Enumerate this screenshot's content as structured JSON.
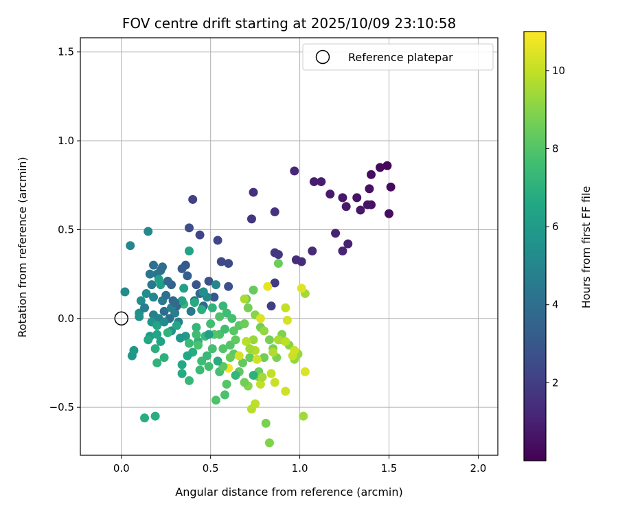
{
  "chart_data": {
    "type": "scatter",
    "title": "FOV centre drift starting at 2025/10/09 23:10:58",
    "xlabel": "Angular distance from reference (arcmin)",
    "ylabel": "Rotation from reference (arcmin)",
    "xlim": [
      -0.23,
      2.11
    ],
    "ylim": [
      -0.77,
      1.58
    ],
    "xticks": [
      0.0,
      0.5,
      1.0,
      1.5,
      2.0
    ],
    "xtick_labels": [
      "0.0",
      "0.5",
      "1.0",
      "1.5",
      "2.0"
    ],
    "yticks": [
      -0.5,
      0.0,
      0.5,
      1.0,
      1.5
    ],
    "ytick_labels": [
      "−0.5",
      "0.0",
      "0.5",
      "1.0",
      "1.5"
    ],
    "grid": true,
    "legend": {
      "position": "top-right",
      "entries": [
        "Reference platepar"
      ]
    },
    "reference_point": {
      "x": 0.0,
      "y": 0.0,
      "label": "Reference platepar"
    },
    "colorbar": {
      "label": "Hours from first FF file",
      "min": 0.0,
      "max": 11.0,
      "ticks": [
        2,
        4,
        6,
        8,
        10
      ],
      "tick_labels": [
        "2",
        "4",
        "6",
        "8",
        "10"
      ],
      "colormap": "viridis"
    },
    "points": [
      {
        "x": 1.49,
        "y": 0.86,
        "h": 0.2
      },
      {
        "x": 1.45,
        "y": 0.85,
        "h": 0.3
      },
      {
        "x": 1.51,
        "y": 0.74,
        "h": 0.3
      },
      {
        "x": 1.4,
        "y": 0.81,
        "h": 0.4
      },
      {
        "x": 1.5,
        "y": 0.59,
        "h": 0.4
      },
      {
        "x": 1.39,
        "y": 0.73,
        "h": 0.5
      },
      {
        "x": 1.4,
        "y": 0.64,
        "h": 0.5
      },
      {
        "x": 1.38,
        "y": 0.64,
        "h": 0.6
      },
      {
        "x": 1.32,
        "y": 0.68,
        "h": 0.6
      },
      {
        "x": 1.34,
        "y": 0.61,
        "h": 0.7
      },
      {
        "x": 1.24,
        "y": 0.68,
        "h": 0.7
      },
      {
        "x": 1.26,
        "y": 0.63,
        "h": 0.8
      },
      {
        "x": 1.17,
        "y": 0.7,
        "h": 0.8
      },
      {
        "x": 1.12,
        "y": 0.77,
        "h": 0.9
      },
      {
        "x": 1.08,
        "y": 0.77,
        "h": 0.9
      },
      {
        "x": 1.2,
        "y": 0.48,
        "h": 1.0
      },
      {
        "x": 1.27,
        "y": 0.42,
        "h": 1.0
      },
      {
        "x": 1.24,
        "y": 0.38,
        "h": 1.1
      },
      {
        "x": 0.97,
        "y": 0.83,
        "h": 1.2
      },
      {
        "x": 1.07,
        "y": 0.38,
        "h": 1.3
      },
      {
        "x": 0.98,
        "y": 0.33,
        "h": 1.4
      },
      {
        "x": 1.01,
        "y": 0.32,
        "h": 1.4
      },
      {
        "x": 0.74,
        "y": 0.71,
        "h": 1.5
      },
      {
        "x": 0.86,
        "y": 0.6,
        "h": 1.6
      },
      {
        "x": 0.73,
        "y": 0.56,
        "h": 1.7
      },
      {
        "x": 0.86,
        "y": 0.37,
        "h": 1.8
      },
      {
        "x": 0.88,
        "y": 0.36,
        "h": 1.8
      },
      {
        "x": 0.86,
        "y": 0.2,
        "h": 1.9
      },
      {
        "x": 0.84,
        "y": 0.07,
        "h": 2.0
      },
      {
        "x": 0.4,
        "y": 0.67,
        "h": 2.1
      },
      {
        "x": 0.44,
        "y": 0.47,
        "h": 2.2
      },
      {
        "x": 0.54,
        "y": 0.44,
        "h": 2.3
      },
      {
        "x": 0.56,
        "y": 0.32,
        "h": 2.4
      },
      {
        "x": 0.6,
        "y": 0.31,
        "h": 2.5
      },
      {
        "x": 0.38,
        "y": 0.51,
        "h": 2.6
      },
      {
        "x": 0.6,
        "y": 0.18,
        "h": 2.7
      },
      {
        "x": 0.49,
        "y": 0.21,
        "h": 2.8
      },
      {
        "x": 0.42,
        "y": 0.19,
        "h": 2.9
      },
      {
        "x": 0.52,
        "y": 0.12,
        "h": 3.0
      },
      {
        "x": 0.36,
        "y": 0.3,
        "h": 3.1
      },
      {
        "x": 0.34,
        "y": 0.28,
        "h": 3.2
      },
      {
        "x": 0.37,
        "y": 0.24,
        "h": 3.3
      },
      {
        "x": 0.28,
        "y": 0.19,
        "h": 3.4
      },
      {
        "x": 0.29,
        "y": 0.1,
        "h": 3.5
      },
      {
        "x": 0.44,
        "y": 0.14,
        "h": 3.6
      },
      {
        "x": 0.41,
        "y": 0.1,
        "h": 3.7
      },
      {
        "x": 0.46,
        "y": 0.07,
        "h": 3.8
      },
      {
        "x": 0.24,
        "y": 0.04,
        "h": 3.9
      },
      {
        "x": 0.22,
        "y": 0.27,
        "h": 4.0
      },
      {
        "x": 0.18,
        "y": 0.3,
        "h": 4.1
      },
      {
        "x": 0.2,
        "y": 0.25,
        "h": 4.2
      },
      {
        "x": 0.16,
        "y": 0.25,
        "h": 4.3
      },
      {
        "x": 0.17,
        "y": 0.19,
        "h": 4.4
      },
      {
        "x": 0.23,
        "y": 0.1,
        "h": 4.5
      },
      {
        "x": 0.3,
        "y": 0.03,
        "h": 4.6
      },
      {
        "x": 0.32,
        "y": -0.02,
        "h": 4.7
      },
      {
        "x": 0.18,
        "y": 0.02,
        "h": 4.8
      },
      {
        "x": 0.21,
        "y": 0.0,
        "h": 4.9
      },
      {
        "x": 0.05,
        "y": 0.41,
        "h": 5.0
      },
      {
        "x": 0.15,
        "y": 0.49,
        "h": 5.1
      },
      {
        "x": 0.02,
        "y": 0.15,
        "h": 5.2
      },
      {
        "x": 0.14,
        "y": 0.14,
        "h": 5.3
      },
      {
        "x": 0.11,
        "y": 0.1,
        "h": 5.4
      },
      {
        "x": 0.1,
        "y": 0.03,
        "h": 5.5
      },
      {
        "x": 0.1,
        "y": 0.01,
        "h": 5.6
      },
      {
        "x": 0.17,
        "y": -0.02,
        "h": 5.7
      },
      {
        "x": 0.06,
        "y": -0.21,
        "h": 5.8
      },
      {
        "x": 0.07,
        "y": -0.18,
        "h": 5.9
      },
      {
        "x": 0.16,
        "y": -0.1,
        "h": 6.0
      },
      {
        "x": 0.22,
        "y": 0.19,
        "h": 6.1
      },
      {
        "x": 0.35,
        "y": 0.17,
        "h": 6.2
      },
      {
        "x": 0.38,
        "y": 0.38,
        "h": 6.3
      },
      {
        "x": 0.2,
        "y": -0.04,
        "h": 6.4
      },
      {
        "x": 0.2,
        "y": -0.09,
        "h": 6.5
      },
      {
        "x": 0.34,
        "y": -0.26,
        "h": 6.6
      },
      {
        "x": 0.34,
        "y": -0.31,
        "h": 6.7
      },
      {
        "x": 0.13,
        "y": -0.56,
        "h": 6.8
      },
      {
        "x": 0.19,
        "y": -0.55,
        "h": 6.9
      },
      {
        "x": 0.24,
        "y": -0.22,
        "h": 7.0
      },
      {
        "x": 0.2,
        "y": -0.25,
        "h": 7.1
      },
      {
        "x": 0.35,
        "y": 0.08,
        "h": 7.2
      },
      {
        "x": 0.38,
        "y": -0.35,
        "h": 7.3
      },
      {
        "x": 0.44,
        "y": -0.29,
        "h": 7.4
      },
      {
        "x": 0.45,
        "y": -0.24,
        "h": 7.5
      },
      {
        "x": 0.49,
        "y": -0.27,
        "h": 7.6
      },
      {
        "x": 0.55,
        "y": -0.3,
        "h": 7.7
      },
      {
        "x": 0.58,
        "y": -0.43,
        "h": 7.8
      },
      {
        "x": 0.53,
        "y": -0.46,
        "h": 7.9
      },
      {
        "x": 0.61,
        "y": -0.15,
        "h": 8.0
      },
      {
        "x": 0.66,
        "y": -0.04,
        "h": 8.1
      },
      {
        "x": 0.63,
        "y": -0.2,
        "h": 8.2
      },
      {
        "x": 0.7,
        "y": 0.11,
        "h": 8.3
      },
      {
        "x": 0.74,
        "y": 0.16,
        "h": 8.4
      },
      {
        "x": 0.88,
        "y": 0.31,
        "h": 8.5
      },
      {
        "x": 0.78,
        "y": -0.05,
        "h": 8.6
      },
      {
        "x": 0.85,
        "y": -0.17,
        "h": 8.7
      },
      {
        "x": 0.81,
        "y": -0.59,
        "h": 8.8
      },
      {
        "x": 0.83,
        "y": -0.7,
        "h": 8.9
      },
      {
        "x": 0.71,
        "y": -0.38,
        "h": 9.0
      },
      {
        "x": 0.77,
        "y": -0.33,
        "h": 9.1
      },
      {
        "x": 0.9,
        "y": -0.12,
        "h": 9.2
      },
      {
        "x": 0.99,
        "y": -0.2,
        "h": 9.3
      },
      {
        "x": 1.02,
        "y": -0.55,
        "h": 9.4
      },
      {
        "x": 1.03,
        "y": 0.14,
        "h": 9.5
      },
      {
        "x": 0.69,
        "y": 0.11,
        "h": 9.6
      },
      {
        "x": 0.75,
        "y": -0.18,
        "h": 9.7
      },
      {
        "x": 0.73,
        "y": -0.51,
        "h": 9.8
      },
      {
        "x": 0.75,
        "y": -0.48,
        "h": 9.9
      },
      {
        "x": 0.78,
        "y": -0.37,
        "h": 10.0
      },
      {
        "x": 0.86,
        "y": -0.36,
        "h": 10.1
      },
      {
        "x": 0.92,
        "y": -0.41,
        "h": 10.2
      },
      {
        "x": 0.93,
        "y": -0.01,
        "h": 10.3
      },
      {
        "x": 1.03,
        "y": -0.3,
        "h": 10.4
      },
      {
        "x": 1.01,
        "y": 0.17,
        "h": 10.5
      },
      {
        "x": 0.82,
        "y": 0.18,
        "h": 10.6
      },
      {
        "x": 0.6,
        "y": -0.28,
        "h": 10.8
      },
      {
        "x": 0.31,
        "y": 0.07,
        "h": 3.6
      },
      {
        "x": 0.27,
        "y": 0.0,
        "h": 4.0
      },
      {
        "x": 0.25,
        "y": 0.13,
        "h": 4.1
      },
      {
        "x": 0.39,
        "y": 0.04,
        "h": 4.4
      },
      {
        "x": 0.36,
        "y": -0.1,
        "h": 6.0
      },
      {
        "x": 0.42,
        "y": -0.05,
        "h": 7.2
      },
      {
        "x": 0.47,
        "y": -0.1,
        "h": 7.4
      },
      {
        "x": 0.5,
        "y": -0.03,
        "h": 7.6
      },
      {
        "x": 0.55,
        "y": -0.09,
        "h": 7.8
      },
      {
        "x": 0.57,
        "y": -0.17,
        "h": 8.0
      },
      {
        "x": 0.63,
        "y": -0.07,
        "h": 8.1
      },
      {
        "x": 0.66,
        "y": -0.3,
        "h": 8.2
      },
      {
        "x": 0.68,
        "y": -0.25,
        "h": 8.3
      },
      {
        "x": 0.72,
        "y": -0.22,
        "h": 8.4
      },
      {
        "x": 0.77,
        "y": -0.3,
        "h": 8.5
      },
      {
        "x": 0.8,
        "y": -0.22,
        "h": 8.6
      },
      {
        "x": 0.83,
        "y": -0.12,
        "h": 8.7
      },
      {
        "x": 0.87,
        "y": -0.22,
        "h": 8.8
      },
      {
        "x": 0.9,
        "y": -0.09,
        "h": 8.9
      },
      {
        "x": 0.94,
        "y": -0.15,
        "h": 9.0
      },
      {
        "x": 0.97,
        "y": -0.23,
        "h": 9.2
      },
      {
        "x": 0.74,
        "y": -0.12,
        "h": 9.3
      },
      {
        "x": 0.79,
        "y": -0.33,
        "h": 9.5
      },
      {
        "x": 0.84,
        "y": -0.31,
        "h": 10.0
      },
      {
        "x": 0.92,
        "y": 0.06,
        "h": 10.0
      },
      {
        "x": 0.96,
        "y": -0.21,
        "h": 10.1
      },
      {
        "x": 0.76,
        "y": -0.23,
        "h": 10.2
      },
      {
        "x": 0.66,
        "y": -0.21,
        "h": 10.3
      },
      {
        "x": 0.7,
        "y": -0.13,
        "h": 9.8
      },
      {
        "x": 0.72,
        "y": -0.17,
        "h": 9.4
      },
      {
        "x": 0.61,
        "y": -0.22,
        "h": 8.4
      },
      {
        "x": 0.57,
        "y": -0.27,
        "h": 8.2
      },
      {
        "x": 0.59,
        "y": -0.37,
        "h": 8.0
      },
      {
        "x": 0.51,
        "y": -0.17,
        "h": 7.7
      },
      {
        "x": 0.48,
        "y": -0.21,
        "h": 7.3
      },
      {
        "x": 0.43,
        "y": -0.13,
        "h": 7.0
      },
      {
        "x": 0.4,
        "y": -0.19,
        "h": 6.8
      },
      {
        "x": 0.37,
        "y": -0.21,
        "h": 6.6
      },
      {
        "x": 0.33,
        "y": -0.11,
        "h": 5.8
      },
      {
        "x": 0.28,
        "y": -0.07,
        "h": 5.6
      },
      {
        "x": 0.24,
        "y": -0.02,
        "h": 5.2
      },
      {
        "x": 0.28,
        "y": 0.06,
        "h": 4.8
      },
      {
        "x": 0.34,
        "y": 0.1,
        "h": 6.4
      },
      {
        "x": 0.31,
        "y": -0.04,
        "h": 6.5
      },
      {
        "x": 0.41,
        "y": 0.09,
        "h": 6.7
      },
      {
        "x": 0.45,
        "y": 0.05,
        "h": 6.9
      },
      {
        "x": 0.48,
        "y": 0.12,
        "h": 5.0
      },
      {
        "x": 0.51,
        "y": 0.06,
        "h": 7.1
      },
      {
        "x": 0.57,
        "y": 0.07,
        "h": 7.3
      },
      {
        "x": 0.59,
        "y": 0.03,
        "h": 7.5
      },
      {
        "x": 0.62,
        "y": 0.0,
        "h": 7.7
      },
      {
        "x": 0.55,
        "y": 0.01,
        "h": 7.9
      },
      {
        "x": 0.52,
        "y": -0.09,
        "h": 8.0
      },
      {
        "x": 0.58,
        "y": -0.06,
        "h": 7.6
      },
      {
        "x": 0.64,
        "y": -0.12,
        "h": 8.3
      },
      {
        "x": 0.69,
        "y": -0.03,
        "h": 8.5
      },
      {
        "x": 0.71,
        "y": 0.06,
        "h": 8.7
      },
      {
        "x": 0.75,
        "y": 0.02,
        "h": 9.0
      },
      {
        "x": 0.8,
        "y": -0.07,
        "h": 9.2
      },
      {
        "x": 0.88,
        "y": -0.12,
        "h": 9.6
      },
      {
        "x": 0.85,
        "y": -0.19,
        "h": 9.7
      },
      {
        "x": 0.92,
        "y": -0.13,
        "h": 9.9
      },
      {
        "x": 0.97,
        "y": -0.18,
        "h": 10.2
      },
      {
        "x": 0.78,
        "y": 0.0,
        "h": 10.4
      },
      {
        "x": 0.74,
        "y": -0.32,
        "h": 7.0
      },
      {
        "x": 0.69,
        "y": -0.36,
        "h": 8.6
      },
      {
        "x": 0.64,
        "y": -0.32,
        "h": 7.2
      },
      {
        "x": 0.54,
        "y": -0.24,
        "h": 6.8
      },
      {
        "x": 0.49,
        "y": -0.09,
        "h": 6.2
      },
      {
        "x": 0.46,
        "y": 0.15,
        "h": 5.4
      },
      {
        "x": 0.53,
        "y": 0.19,
        "h": 5.0
      },
      {
        "x": 0.21,
        "y": 0.22,
        "h": 6.2
      },
      {
        "x": 0.18,
        "y": 0.12,
        "h": 5.0
      },
      {
        "x": 0.13,
        "y": 0.06,
        "h": 4.6
      },
      {
        "x": 0.15,
        "y": -0.12,
        "h": 6.6
      },
      {
        "x": 0.22,
        "y": -0.13,
        "h": 6.3
      },
      {
        "x": 0.19,
        "y": -0.17,
        "h": 6.9
      },
      {
        "x": 0.26,
        "y": -0.08,
        "h": 7.1
      },
      {
        "x": 0.42,
        "y": -0.09,
        "h": 7.5
      },
      {
        "x": 0.38,
        "y": -0.14,
        "h": 7.4
      },
      {
        "x": 0.43,
        "y": -0.15,
        "h": 7.8
      },
      {
        "x": 0.3,
        "y": 0.09,
        "h": 3.8
      },
      {
        "x": 0.26,
        "y": 0.21,
        "h": 3.7
      },
      {
        "x": 0.23,
        "y": 0.29,
        "h": 3.9
      }
    ]
  }
}
